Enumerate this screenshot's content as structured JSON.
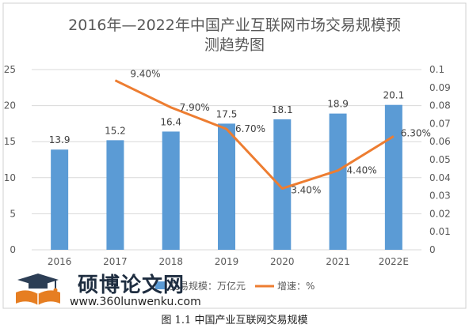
{
  "caption": "图 1.1 中国产业互联网交易规模",
  "watermark": {
    "title": "硕博论文网",
    "url": "www.360lunwenku.com"
  },
  "colors": {
    "bar": "#5b9bd5",
    "line": "#ed7d31",
    "axis": "#595959",
    "grid": "#d9d9d9",
    "frame": "#d0d0d0",
    "title": "#595959"
  },
  "chart_data": {
    "type": "bar",
    "title": "2016年—2022年中国产业互联网市场交易规模预测趋势图",
    "title_lines": [
      "2016年—2022年中国产业互联网市场交易规模预",
      "测趋势图"
    ],
    "categories": [
      "2016",
      "2017",
      "2018",
      "2019",
      "2020",
      "2021",
      "2022E"
    ],
    "series": [
      {
        "name": "交易规模：万亿元",
        "type": "bar",
        "axis": "left",
        "values": [
          13.9,
          15.2,
          16.4,
          17.5,
          18.1,
          18.9,
          20.1
        ],
        "labels": [
          "13.9",
          "15.2",
          "16.4",
          "17.5",
          "18.1",
          "18.9",
          "20.1"
        ]
      },
      {
        "name": "增速：%",
        "type": "line",
        "axis": "right",
        "values": [
          null,
          0.094,
          0.079,
          0.067,
          0.034,
          0.044,
          0.063
        ],
        "labels": [
          "",
          "9.40%",
          "7.90%",
          "6.70%",
          "3.40%",
          "4.40%",
          "6.30%"
        ]
      }
    ],
    "y_left": {
      "min": 0,
      "max": 25,
      "ticks": [
        "0",
        "5",
        "10",
        "15",
        "20",
        "25"
      ]
    },
    "y_right": {
      "min": 0,
      "max": 0.1,
      "ticks": [
        "0",
        "0.01",
        "0.02",
        "0.03",
        "0.04",
        "0.05",
        "0.06",
        "0.07",
        "0.08",
        "0.09",
        "0.1"
      ]
    },
    "grid": true,
    "legend": "bottom"
  }
}
